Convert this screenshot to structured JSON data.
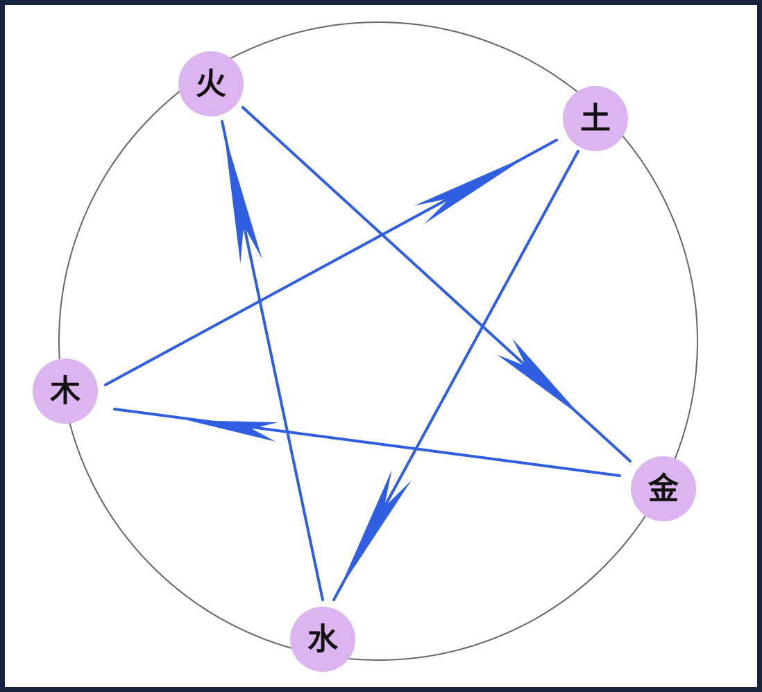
{
  "diagram": {
    "nodes": [
      {
        "id": "fire",
        "label": "火"
      },
      {
        "id": "earth",
        "label": "土"
      },
      {
        "id": "wood",
        "label": "木"
      },
      {
        "id": "metal",
        "label": "金"
      },
      {
        "id": "water",
        "label": "水"
      }
    ],
    "edges": [
      {
        "from": "fire",
        "to": "metal"
      },
      {
        "from": "metal",
        "to": "wood"
      },
      {
        "from": "wood",
        "to": "earth"
      },
      {
        "from": "earth",
        "to": "water"
      },
      {
        "from": "water",
        "to": "fire"
      }
    ],
    "colors": {
      "node_fill": "#dcb4f0",
      "edge": "#2f5fe0",
      "circle": "#666666",
      "border": "#17233d"
    }
  }
}
